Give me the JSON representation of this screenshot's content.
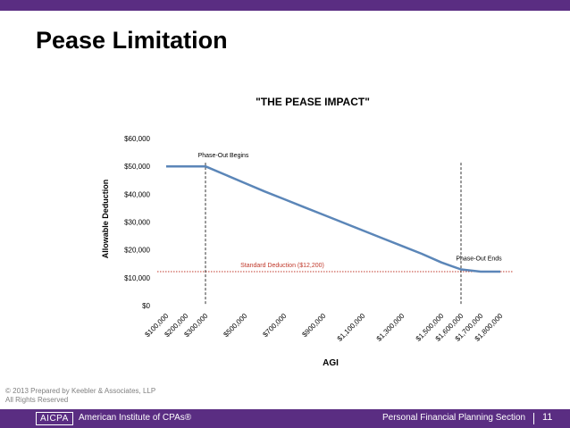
{
  "slide": {
    "title": "Pease Limitation",
    "copyright_line1": "© 2013 Prepared by Keebler & Associates, LLP",
    "copyright_line2": "All Rights Reserved"
  },
  "footer": {
    "logo_text": "AICPA",
    "organization": "American Institute of CPAs®",
    "section": "Personal Financial Planning Section",
    "page_number": "11"
  },
  "colors": {
    "brand_purple": "#5a2d82",
    "series_line": "#5b86b8",
    "standard_deduction_line": "#c0392b"
  },
  "chart_data": {
    "type": "line",
    "title": "\"THE PEASE IMPACT\"",
    "xlabel": "AGI",
    "ylabel": "Allowable Deduction",
    "ylim": [
      0,
      60000
    ],
    "yticks": [
      0,
      10000,
      20000,
      30000,
      40000,
      50000,
      60000
    ],
    "ytick_labels": [
      "$0",
      "$10,000",
      "$20,000",
      "$30,000",
      "$40,000",
      "$50,000",
      "$60,000"
    ],
    "categories": [
      "$100,000",
      "$200,000",
      "$300,000",
      "$500,000",
      "$700,000",
      "$900,000",
      "$1,100,000",
      "$1,300,000",
      "$1,500,000",
      "$1,600,000",
      "$1,700,000",
      "$1,800,000"
    ],
    "x": [
      100000,
      200000,
      300000,
      400000,
      500000,
      600000,
      700000,
      800000,
      900000,
      1000000,
      1100000,
      1200000,
      1300000,
      1400000,
      1500000,
      1600000,
      1700000,
      1800000
    ],
    "series": [
      {
        "values": [
          50000,
          50000,
          50000,
          47000,
          44000,
          41000,
          38200,
          35400,
          32600,
          29800,
          27000,
          24200,
          21400,
          18600,
          15500,
          13000,
          12200,
          12200
        ]
      }
    ],
    "reference_lines": [
      {
        "type": "horizontal",
        "y": 12200,
        "label": "Standard Deduction ($12,200)"
      },
      {
        "type": "vertical",
        "x": 300000,
        "label": "Phase-Out Begins"
      },
      {
        "type": "vertical",
        "x": 1600000,
        "label": "Phase-Out Ends"
      }
    ],
    "grid": false,
    "legend": "none"
  }
}
